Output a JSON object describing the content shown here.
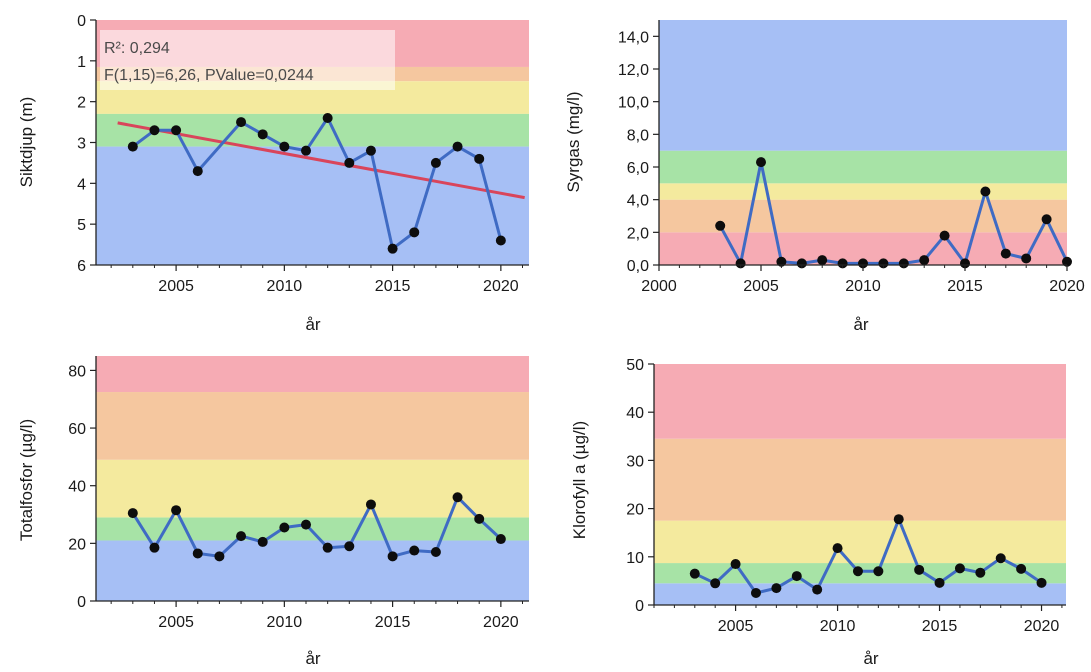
{
  "chart_data": [
    {
      "type": "line",
      "xlabel": "år",
      "ylabel": "Siktdjup (m)",
      "y_inverted": true,
      "xlim": [
        2001.3,
        2021.3
      ],
      "ylim": [
        0,
        6
      ],
      "xticks": [
        {
          "v": 2005,
          "label": "2005"
        },
        {
          "v": 2010,
          "label": "2010"
        },
        {
          "v": 2015,
          "label": "2015"
        },
        {
          "v": 2020,
          "label": "2020"
        }
      ],
      "yticks": [
        {
          "v": 0,
          "label": "0"
        },
        {
          "v": 1,
          "label": "1"
        },
        {
          "v": 2,
          "label": "2"
        },
        {
          "v": 3,
          "label": "3"
        },
        {
          "v": 4,
          "label": "4"
        },
        {
          "v": 5,
          "label": "5"
        },
        {
          "v": 6,
          "label": "6"
        }
      ],
      "bands": [
        {
          "from": 0,
          "to": 1.15,
          "color": "#f6abb4"
        },
        {
          "from": 1.15,
          "to": 1.5,
          "color": "#f5c79f"
        },
        {
          "from": 1.5,
          "to": 2.3,
          "color": "#f4ea9e"
        },
        {
          "from": 2.3,
          "to": 3.1,
          "color": "#a7e3a6"
        },
        {
          "from": 3.1,
          "to": 6,
          "color": "#a6bff5"
        }
      ],
      "series": [
        {
          "x": [
            2003,
            2004,
            2005,
            2006,
            2008,
            2009,
            2010,
            2011,
            2012,
            2013,
            2014,
            2015,
            2016,
            2017,
            2018,
            2019,
            2020
          ],
          "y": [
            3.1,
            2.7,
            2.7,
            3.7,
            2.5,
            2.8,
            3.1,
            3.2,
            2.4,
            3.5,
            3.2,
            5.6,
            5.2,
            3.5,
            3.1,
            3.4,
            5.4
          ],
          "color": "#3f6bc4"
        }
      ],
      "trend": {
        "x": [
          2002.3,
          2021.1
        ],
        "y": [
          2.52,
          4.35
        ],
        "color": "#d9455b"
      },
      "annotation": [
        "R²: 0,294",
        "F(1,15)=6,26, PValue=0,0244"
      ]
    },
    {
      "type": "line",
      "xlabel": "år",
      "ylabel": "Syrgas (mg/l)",
      "xlim": [
        2000,
        2020
      ],
      "ylim": [
        0,
        15
      ],
      "xticks": [
        {
          "v": 2000,
          "label": "2000"
        },
        {
          "v": 2005,
          "label": "2005"
        },
        {
          "v": 2010,
          "label": "2010"
        },
        {
          "v": 2015,
          "label": "2015"
        },
        {
          "v": 2020,
          "label": "2020"
        }
      ],
      "yticks": [
        {
          "v": 0,
          "label": "0,0"
        },
        {
          "v": 2,
          "label": "2,0"
        },
        {
          "v": 4,
          "label": "4,0"
        },
        {
          "v": 6,
          "label": "6,0"
        },
        {
          "v": 8,
          "label": "8,0"
        },
        {
          "v": 10,
          "label": "10,0"
        },
        {
          "v": 12,
          "label": "12,0"
        },
        {
          "v": 14,
          "label": "14,0"
        }
      ],
      "bands": [
        {
          "from": 0,
          "to": 2,
          "color": "#f6abb4"
        },
        {
          "from": 2,
          "to": 4,
          "color": "#f5c79f"
        },
        {
          "from": 4,
          "to": 5,
          "color": "#f4ea9e"
        },
        {
          "from": 5,
          "to": 7,
          "color": "#a7e3a6"
        },
        {
          "from": 7,
          "to": 15,
          "color": "#a6bff5"
        }
      ],
      "series": [
        {
          "x": [
            2003,
            2004,
            2005,
            2006,
            2007,
            2008,
            2009,
            2010,
            2011,
            2012,
            2013,
            2014,
            2015,
            2016,
            2017,
            2018,
            2019,
            2020
          ],
          "y": [
            2.4,
            0.1,
            6.3,
            0.2,
            0.1,
            0.3,
            0.1,
            0.1,
            0.1,
            0.1,
            0.3,
            1.8,
            0.1,
            4.5,
            0.7,
            0.4,
            2.8,
            0.2
          ],
          "color": "#3f6bc4"
        }
      ]
    },
    {
      "type": "line",
      "xlabel": "år",
      "ylabel": "Totalfosfor (µg/l)",
      "xlim": [
        2001.3,
        2021.3
      ],
      "ylim": [
        0,
        85
      ],
      "xticks": [
        {
          "v": 2005,
          "label": "2005"
        },
        {
          "v": 2010,
          "label": "2010"
        },
        {
          "v": 2015,
          "label": "2015"
        },
        {
          "v": 2020,
          "label": "2020"
        }
      ],
      "yticks": [
        {
          "v": 0,
          "label": "0"
        },
        {
          "v": 20,
          "label": "20"
        },
        {
          "v": 40,
          "label": "40"
        },
        {
          "v": 60,
          "label": "60"
        },
        {
          "v": 80,
          "label": "80"
        }
      ],
      "bands": [
        {
          "from": 0,
          "to": 21,
          "color": "#a6bff5"
        },
        {
          "from": 21,
          "to": 29,
          "color": "#a7e3a6"
        },
        {
          "from": 29,
          "to": 49,
          "color": "#f4ea9e"
        },
        {
          "from": 49,
          "to": 72.5,
          "color": "#f5c79f"
        },
        {
          "from": 72.5,
          "to": 85,
          "color": "#f6abb4"
        }
      ],
      "series": [
        {
          "x": [
            2003,
            2004,
            2005,
            2006,
            2007,
            2008,
            2009,
            2010,
            2011,
            2012,
            2013,
            2014,
            2015,
            2016,
            2017,
            2018,
            2019,
            2020
          ],
          "y": [
            30.5,
            18.5,
            31.5,
            16.5,
            15.5,
            22.5,
            20.5,
            25.5,
            26.5,
            18.5,
            19,
            33.5,
            15.5,
            17.5,
            17,
            36,
            28.5,
            21.5
          ],
          "color": "#3f6bc4"
        }
      ]
    },
    {
      "type": "line",
      "xlabel": "år",
      "ylabel": "Klorofyll a (µg/l)",
      "xlim": [
        2001,
        2021.2
      ],
      "ylim": [
        0,
        50
      ],
      "xticks": [
        {
          "v": 2005,
          "label": "2005"
        },
        {
          "v": 2010,
          "label": "2010"
        },
        {
          "v": 2015,
          "label": "2015"
        },
        {
          "v": 2020,
          "label": "2020"
        }
      ],
      "yticks": [
        {
          "v": 0,
          "label": "0"
        },
        {
          "v": 10,
          "label": "10"
        },
        {
          "v": 20,
          "label": "20"
        },
        {
          "v": 30,
          "label": "30"
        },
        {
          "v": 40,
          "label": "40"
        },
        {
          "v": 50,
          "label": "50"
        }
      ],
      "bands": [
        {
          "from": 0,
          "to": 4.5,
          "color": "#a6bff5"
        },
        {
          "from": 4.5,
          "to": 8.7,
          "color": "#a7e3a6"
        },
        {
          "from": 8.7,
          "to": 17.5,
          "color": "#f4ea9e"
        },
        {
          "from": 17.5,
          "to": 34.5,
          "color": "#f5c79f"
        },
        {
          "from": 34.5,
          "to": 50,
          "color": "#f6abb4"
        }
      ],
      "series": [
        {
          "x": [
            2003,
            2004,
            2005,
            2006,
            2007,
            2008,
            2009,
            2010,
            2011,
            2012,
            2013,
            2014,
            2015,
            2016,
            2017,
            2018,
            2019,
            2020
          ],
          "y": [
            6.5,
            4.5,
            8.5,
            2.5,
            3.5,
            6,
            3.2,
            11.8,
            7,
            7,
            17.8,
            7.3,
            4.6,
            7.6,
            6.7,
            9.7,
            7.5,
            4.6
          ],
          "color": "#3f6bc4"
        }
      ]
    }
  ]
}
